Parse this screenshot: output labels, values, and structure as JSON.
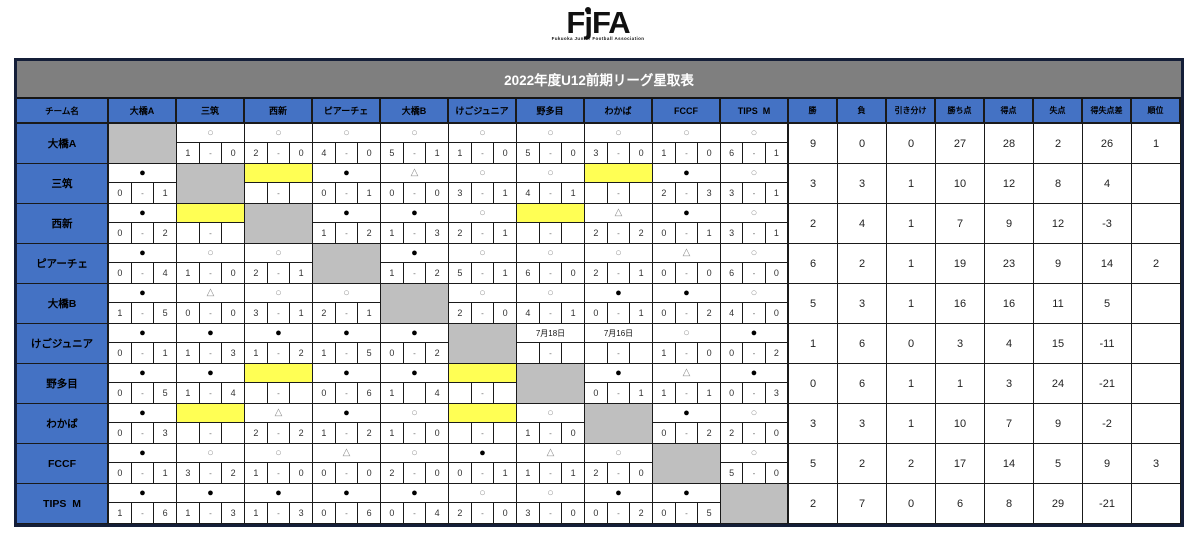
{
  "logo": {
    "part1": "F",
    "part2": "j",
    "part3": "FA",
    "subtext": "Fukuoka Junior Football Association"
  },
  "title": "2022年度U12前期リーグ星取表",
  "symbols": {
    "W": "○",
    "L": "●",
    "D": "△"
  },
  "colors": {
    "header_blue": "#4472c4",
    "title_gray": "#7f7f7f",
    "diagonal_gray": "#bfbfbf",
    "pending_yellow": "#ffff54",
    "win_symbol": "#9a9a9a",
    "loss_symbol": "#000000",
    "draw_symbol": "#8d8d8d"
  },
  "table": {
    "corner_label": "チーム名",
    "teams": [
      "大橋A",
      "三筑",
      "西新",
      "ピアーチェ",
      "大橋B",
      "けごジュニア",
      "野多目",
      "わかば",
      "FCCF",
      "TIPS  M"
    ],
    "stat_headers": [
      "勝",
      "負",
      "引き分け",
      "勝ち点",
      "得点",
      "失点",
      "得失点差",
      "順位"
    ],
    "rows": [
      {
        "team": "大橋A",
        "cells": [
          [
            "s"
          ],
          [
            "r",
            "W",
            "1",
            "-",
            "0"
          ],
          [
            "r",
            "W",
            "2",
            "-",
            "0"
          ],
          [
            "r",
            "W",
            "4",
            "-",
            "0"
          ],
          [
            "r",
            "W",
            "5",
            "-",
            "1"
          ],
          [
            "r",
            "W",
            "1",
            "-",
            "0"
          ],
          [
            "r",
            "W",
            "5",
            "-",
            "0"
          ],
          [
            "r",
            "W",
            "3",
            "-",
            "0"
          ],
          [
            "r",
            "W",
            "1",
            "-",
            "0"
          ],
          [
            "r",
            "W",
            "6",
            "-",
            "1"
          ]
        ],
        "stats": [
          "9",
          "0",
          "0",
          "27",
          "28",
          "2",
          "26",
          "1"
        ]
      },
      {
        "team": "三筑",
        "cells": [
          [
            "r",
            "L",
            "0",
            "-",
            "1"
          ],
          [
            "s"
          ],
          [
            "p"
          ],
          [
            "r",
            "L",
            "0",
            "-",
            "1"
          ],
          [
            "r",
            "D",
            "0",
            "-",
            "0"
          ],
          [
            "r",
            "W",
            "3",
            "-",
            "1"
          ],
          [
            "r",
            "W",
            "4",
            "-",
            "1"
          ],
          [
            "p"
          ],
          [
            "r",
            "L",
            "2",
            "-",
            "3"
          ],
          [
            "r",
            "W",
            "3",
            "-",
            "1"
          ]
        ],
        "stats": [
          "3",
          "3",
          "1",
          "10",
          "12",
          "8",
          "4",
          ""
        ]
      },
      {
        "team": "西新",
        "cells": [
          [
            "r",
            "L",
            "0",
            "-",
            "2"
          ],
          [
            "p"
          ],
          [
            "s"
          ],
          [
            "r",
            "L",
            "1",
            "-",
            "2"
          ],
          [
            "r",
            "L",
            "1",
            "-",
            "3"
          ],
          [
            "r",
            "W",
            "2",
            "-",
            "1"
          ],
          [
            "p"
          ],
          [
            "r",
            "D",
            "2",
            "-",
            "2"
          ],
          [
            "r",
            "L",
            "0",
            "-",
            "1"
          ],
          [
            "r",
            "W",
            "3",
            "-",
            "1"
          ]
        ],
        "stats": [
          "2",
          "4",
          "1",
          "7",
          "9",
          "12",
          "-3",
          ""
        ]
      },
      {
        "team": "ピアーチェ",
        "cells": [
          [
            "r",
            "L",
            "0",
            "-",
            "4"
          ],
          [
            "r",
            "W",
            "1",
            "-",
            "0"
          ],
          [
            "r",
            "W",
            "2",
            "-",
            "1"
          ],
          [
            "s"
          ],
          [
            "r",
            "L",
            "1",
            "-",
            "2"
          ],
          [
            "r",
            "W",
            "5",
            "-",
            "1"
          ],
          [
            "r",
            "W",
            "6",
            "-",
            "0"
          ],
          [
            "r",
            "W",
            "2",
            "-",
            "1"
          ],
          [
            "r",
            "D",
            "0",
            "-",
            "0"
          ],
          [
            "r",
            "W",
            "6",
            "-",
            "0"
          ]
        ],
        "stats": [
          "6",
          "2",
          "1",
          "19",
          "23",
          "9",
          "14",
          "2"
        ]
      },
      {
        "team": "大橋B",
        "cells": [
          [
            "r",
            "L",
            "1",
            "-",
            "5"
          ],
          [
            "r",
            "D",
            "0",
            "-",
            "0"
          ],
          [
            "r",
            "W",
            "3",
            "-",
            "1"
          ],
          [
            "r",
            "W",
            "2",
            "-",
            "1"
          ],
          [
            "s"
          ],
          [
            "r",
            "W",
            "2",
            "-",
            "0"
          ],
          [
            "r",
            "W",
            "4",
            "-",
            "1"
          ],
          [
            "r",
            "L",
            "0",
            "-",
            "1"
          ],
          [
            "r",
            "L",
            "0",
            "-",
            "2"
          ],
          [
            "r",
            "W",
            "4",
            "-",
            "0"
          ]
        ],
        "stats": [
          "5",
          "3",
          "1",
          "16",
          "16",
          "11",
          "5",
          ""
        ]
      },
      {
        "team": "けごジュニア",
        "cells": [
          [
            "r",
            "L",
            "0",
            "-",
            "1"
          ],
          [
            "r",
            "L",
            "1",
            "-",
            "3"
          ],
          [
            "r",
            "L",
            "1",
            "-",
            "2"
          ],
          [
            "r",
            "L",
            "1",
            "-",
            "5"
          ],
          [
            "r",
            "L",
            "0",
            "-",
            "2"
          ],
          [
            "s"
          ],
          [
            "t",
            "7月18日"
          ],
          [
            "t",
            "7月16日"
          ],
          [
            "r",
            "W",
            "1",
            "-",
            "0"
          ],
          [
            "r",
            "L",
            "0",
            "-",
            "2"
          ]
        ],
        "stats": [
          "1",
          "6",
          "0",
          "3",
          "4",
          "15",
          "-11",
          ""
        ]
      },
      {
        "team": "野多目",
        "cells": [
          [
            "r",
            "L",
            "0",
            "-",
            "5"
          ],
          [
            "r",
            "L",
            "1",
            "-",
            "4"
          ],
          [
            "p"
          ],
          [
            "r",
            "L",
            "0",
            "-",
            "6"
          ],
          [
            "r",
            "L",
            "1",
            "",
            "4"
          ],
          [
            "p"
          ],
          [
            "s"
          ],
          [
            "r",
            "L",
            "0",
            "-",
            "1"
          ],
          [
            "r",
            "D",
            "1",
            "-",
            "1"
          ],
          [
            "r",
            "L",
            "0",
            "-",
            "3"
          ]
        ],
        "stats": [
          "0",
          "6",
          "1",
          "1",
          "3",
          "24",
          "-21",
          ""
        ]
      },
      {
        "team": "わかば",
        "cells": [
          [
            "r",
            "L",
            "0",
            "-",
            "3"
          ],
          [
            "p"
          ],
          [
            "r",
            "D",
            "2",
            "-",
            "2"
          ],
          [
            "r",
            "L",
            "1",
            "-",
            "2"
          ],
          [
            "r",
            "W",
            "1",
            "-",
            "0"
          ],
          [
            "p"
          ],
          [
            "r",
            "W",
            "1",
            "-",
            "0"
          ],
          [
            "s"
          ],
          [
            "r",
            "L",
            "0",
            "-",
            "2"
          ],
          [
            "r",
            "W",
            "2",
            "-",
            "0"
          ]
        ],
        "stats": [
          "3",
          "3",
          "1",
          "10",
          "7",
          "9",
          "-2",
          ""
        ]
      },
      {
        "team": "FCCF",
        "cells": [
          [
            "r",
            "L",
            "0",
            "-",
            "1"
          ],
          [
            "r",
            "W",
            "3",
            "-",
            "2"
          ],
          [
            "r",
            "W",
            "1",
            "-",
            "0"
          ],
          [
            "r",
            "D",
            "0",
            "-",
            "0"
          ],
          [
            "r",
            "W",
            "2",
            "-",
            "0"
          ],
          [
            "r",
            "L",
            "0",
            "-",
            "1"
          ],
          [
            "r",
            "D",
            "1",
            "-",
            "1"
          ],
          [
            "r",
            "W",
            "2",
            "-",
            "0"
          ],
          [
            "s"
          ],
          [
            "r",
            "W",
            "5",
            "-",
            "0"
          ]
        ],
        "stats": [
          "5",
          "2",
          "2",
          "17",
          "14",
          "5",
          "9",
          "3"
        ]
      },
      {
        "team": "TIPS  M",
        "cells": [
          [
            "r",
            "L",
            "1",
            "-",
            "6"
          ],
          [
            "r",
            "L",
            "1",
            "-",
            "3"
          ],
          [
            "r",
            "L",
            "1",
            "-",
            "3"
          ],
          [
            "r",
            "L",
            "0",
            "-",
            "6"
          ],
          [
            "r",
            "L",
            "0",
            "-",
            "4"
          ],
          [
            "r",
            "W",
            "2",
            "-",
            "0"
          ],
          [
            "r",
            "W",
            "3",
            "-",
            "0"
          ],
          [
            "r",
            "L",
            "0",
            "-",
            "2"
          ],
          [
            "r",
            "L",
            "0",
            "-",
            "5"
          ],
          [
            "s"
          ]
        ],
        "stats": [
          "2",
          "7",
          "0",
          "6",
          "8",
          "29",
          "-21",
          ""
        ]
      }
    ]
  }
}
